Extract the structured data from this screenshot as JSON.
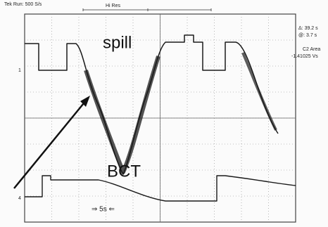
{
  "header": {
    "status": "Tek Run: 500 S/s",
    "mode": "Hi Res"
  },
  "screen": {
    "spill_label": "spill",
    "bct_label": "BCT",
    "channel_1": "1",
    "channel_4": "4",
    "time_scale": "⇒ 5s ⇐"
  },
  "readout": {
    "delta": "Δ: 39.2 s",
    "at": "@: 3.7 s",
    "measure_name": "C2 Area",
    "measure_value": "-1.41025 Vs"
  }
}
